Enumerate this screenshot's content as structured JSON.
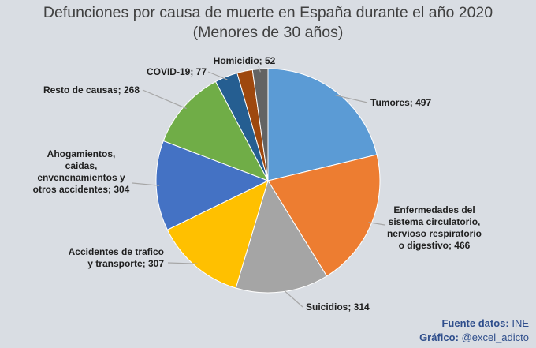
{
  "chart_data": {
    "type": "pie",
    "title": "Defunciones por causa de muerte en España durante el año 2020",
    "subtitle": "(Menores de 30 años)",
    "slices": [
      {
        "name": "Tumores",
        "value": 497,
        "color": "#5b9bd5",
        "label": "Tumores; 497"
      },
      {
        "name": "Enfermedades del sistema circulatorio, nervioso respiratorio o digestivo",
        "value": 466,
        "color": "#ed7d31",
        "label_lines": [
          "Enfermedades del",
          "sistema circulatorio,",
          "nervioso respiratorio",
          "o digestivo; 466"
        ]
      },
      {
        "name": "Suicidios",
        "value": 314,
        "color": "#a5a5a5",
        "label": "Suicidios; 314"
      },
      {
        "name": "Accidentes de trafico y transporte",
        "value": 307,
        "color": "#ffc000",
        "label_lines": [
          "Accidentes de trafico",
          "y transporte; 307"
        ]
      },
      {
        "name": "Ahogamientos, caidas, envenenamientos y otros accidentes",
        "value": 304,
        "color": "#4472c4",
        "label_lines": [
          "Ahogamientos,",
          "caidas,",
          "envenenamientos y",
          "otros accidentes; 304"
        ]
      },
      {
        "name": "Resto de causas",
        "value": 268,
        "color": "#70ad47",
        "label": "Resto de causas; 268"
      },
      {
        "name": "COVID-19",
        "value": 77,
        "color": "#255e91",
        "label": "COVID-19; 77"
      },
      {
        "name": "",
        "value": 52,
        "color": "#9e480e"
      },
      {
        "name": "Homicidio",
        "value": 52,
        "color": "#636363",
        "label": "Homicidio; 52"
      }
    ]
  },
  "footer": {
    "source_label": "Fuente datos:",
    "source_value": "INE",
    "chart_label": "Gráfico:",
    "chart_value": "@excel_adicto"
  }
}
